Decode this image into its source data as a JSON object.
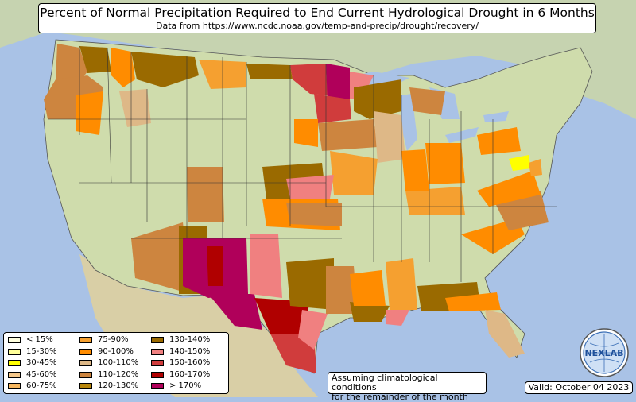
{
  "title": "Percent of Normal Precipitation Required to End Current Hydrological Drought in 6 Months",
  "subtitle": "Data from https://www.ncdc.noaa.gov/temp-and-precip/drought/recovery/",
  "legend": [
    {
      "label": "< 15%",
      "color": "#ffffe0"
    },
    {
      "label": "15-30%",
      "color": "#ffff99"
    },
    {
      "label": "30-45%",
      "color": "#ffff00"
    },
    {
      "label": "45-60%",
      "color": "#f5c88a"
    },
    {
      "label": "60-75%",
      "color": "#f8b860"
    },
    {
      "label": "75-90%",
      "color": "#f5a030"
    },
    {
      "label": "90-100%",
      "color": "#ff8c00"
    },
    {
      "label": "100-110%",
      "color": "#deb887"
    },
    {
      "label": "110-120%",
      "color": "#cd853f"
    },
    {
      "label": "120-130%",
      "color": "#b8860b"
    },
    {
      "label": "130-140%",
      "color": "#9a6a00"
    },
    {
      "label": "140-150%",
      "color": "#f08080"
    },
    {
      "label": "150-160%",
      "color": "#d03c3c"
    },
    {
      "label": "160-170%",
      "color": "#b00000"
    },
    {
      "label": "> 170%",
      "color": "#b0005a"
    }
  ],
  "note_line1": "Assuming climatological conditions",
  "note_line2": "for the remainder of the month",
  "valid": "Valid: October 04 2023",
  "logo_text": "NEXLAB",
  "colors": {
    "ocean": "#a9c2e6",
    "land": "#c9d9a8",
    "border": "#000000"
  }
}
